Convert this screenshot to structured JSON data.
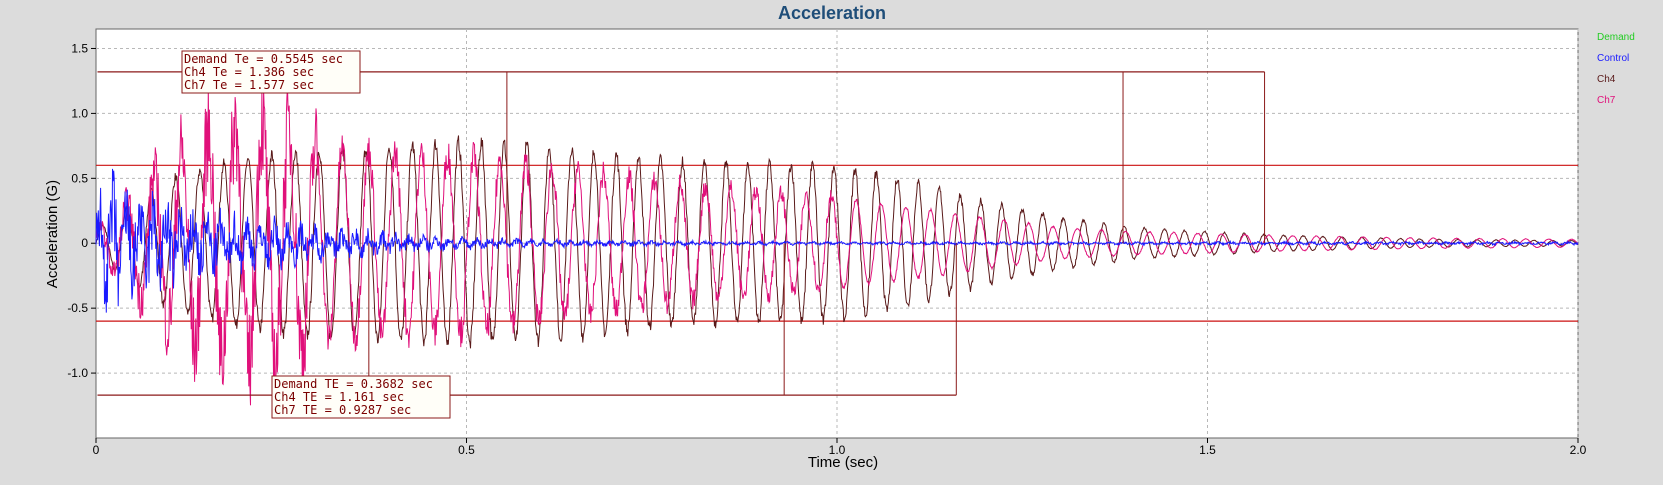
{
  "chart_data": {
    "type": "line",
    "title": "Acceleration",
    "xlabel": "Time (sec)",
    "ylabel": "Acceleration (G)",
    "xlim": [
      0,
      2.0
    ],
    "ylim": [
      -1.5,
      1.65
    ],
    "x_ticks": [
      0,
      0.5,
      1.0,
      1.5,
      2.0
    ],
    "x_tick_labels": [
      "0",
      "0.5",
      "1.0",
      "1.5",
      "2.0"
    ],
    "y_ticks": [
      1.5,
      1.0,
      0.5,
      0,
      -0.5,
      -1.0
    ],
    "y_tick_labels": [
      "1.5",
      "1.0",
      "0.5",
      "0",
      "-0.5",
      "-1.0"
    ],
    "grid": true,
    "legend_position": "right",
    "legend": [
      {
        "name": "Demand",
        "color": "#22cc22"
      },
      {
        "name": "Control",
        "color": "#1a1aff"
      },
      {
        "name": "Ch4",
        "color": "#5a1a1a"
      },
      {
        "name": "Ch7",
        "color": "#e0107a"
      }
    ],
    "series": [
      {
        "name": "Control",
        "color": "#1a1aff",
        "x": [
          0,
          0.02,
          0.05,
          0.1,
          0.15,
          0.2,
          0.3,
          0.4,
          0.5,
          0.6,
          0.8,
          1.0,
          1.5,
          2.0
        ],
        "envelope": [
          0.3,
          0.45,
          0.35,
          0.3,
          0.22,
          0.18,
          0.12,
          0.07,
          0.04,
          0.025,
          0.015,
          0.01,
          0.01,
          0.01
        ]
      },
      {
        "name": "Ch4",
        "color": "#5a1a1a",
        "x": [
          0,
          0.05,
          0.1,
          0.2,
          0.3,
          0.5,
          0.6,
          0.8,
          1.0,
          1.1,
          1.2,
          1.3,
          1.4,
          1.6,
          1.8,
          2.0
        ],
        "envelope": [
          0.1,
          0.3,
          0.5,
          0.65,
          0.72,
          0.78,
          0.75,
          0.62,
          0.6,
          0.48,
          0.32,
          0.2,
          0.12,
          0.06,
          0.03,
          0.02
        ]
      },
      {
        "name": "Ch7",
        "color": "#e0107a",
        "x": [
          0,
          0.05,
          0.1,
          0.15,
          0.2,
          0.25,
          0.3,
          0.4,
          0.5,
          0.6,
          0.8,
          1.0,
          1.2,
          1.3,
          1.4,
          1.6,
          1.8,
          2.0
        ],
        "envelope": [
          0.1,
          0.35,
          0.65,
          0.85,
          0.95,
          0.9,
          0.75,
          0.7,
          0.68,
          0.6,
          0.45,
          0.35,
          0.2,
          0.12,
          0.09,
          0.06,
          0.04,
          0.03
        ]
      }
    ],
    "threshold_lines": [
      0.6,
      -0.6
    ],
    "annotations": [
      {
        "lines": [
          "Demand Te = 0.5545 sec",
          "Ch4 Te = 1.386 sec",
          "Ch7 Te = 1.577 sec"
        ],
        "bracket_y": 1.32,
        "markers": [
          0.5545,
          1.386,
          1.577
        ]
      },
      {
        "lines": [
          "Demand TE = 0.3682 sec",
          "Ch4 TE = 1.161 sec",
          "Ch7 TE = 0.9287 sec"
        ],
        "bracket_y": -1.17,
        "markers": [
          0.3682,
          0.9287,
          1.161
        ]
      }
    ]
  }
}
